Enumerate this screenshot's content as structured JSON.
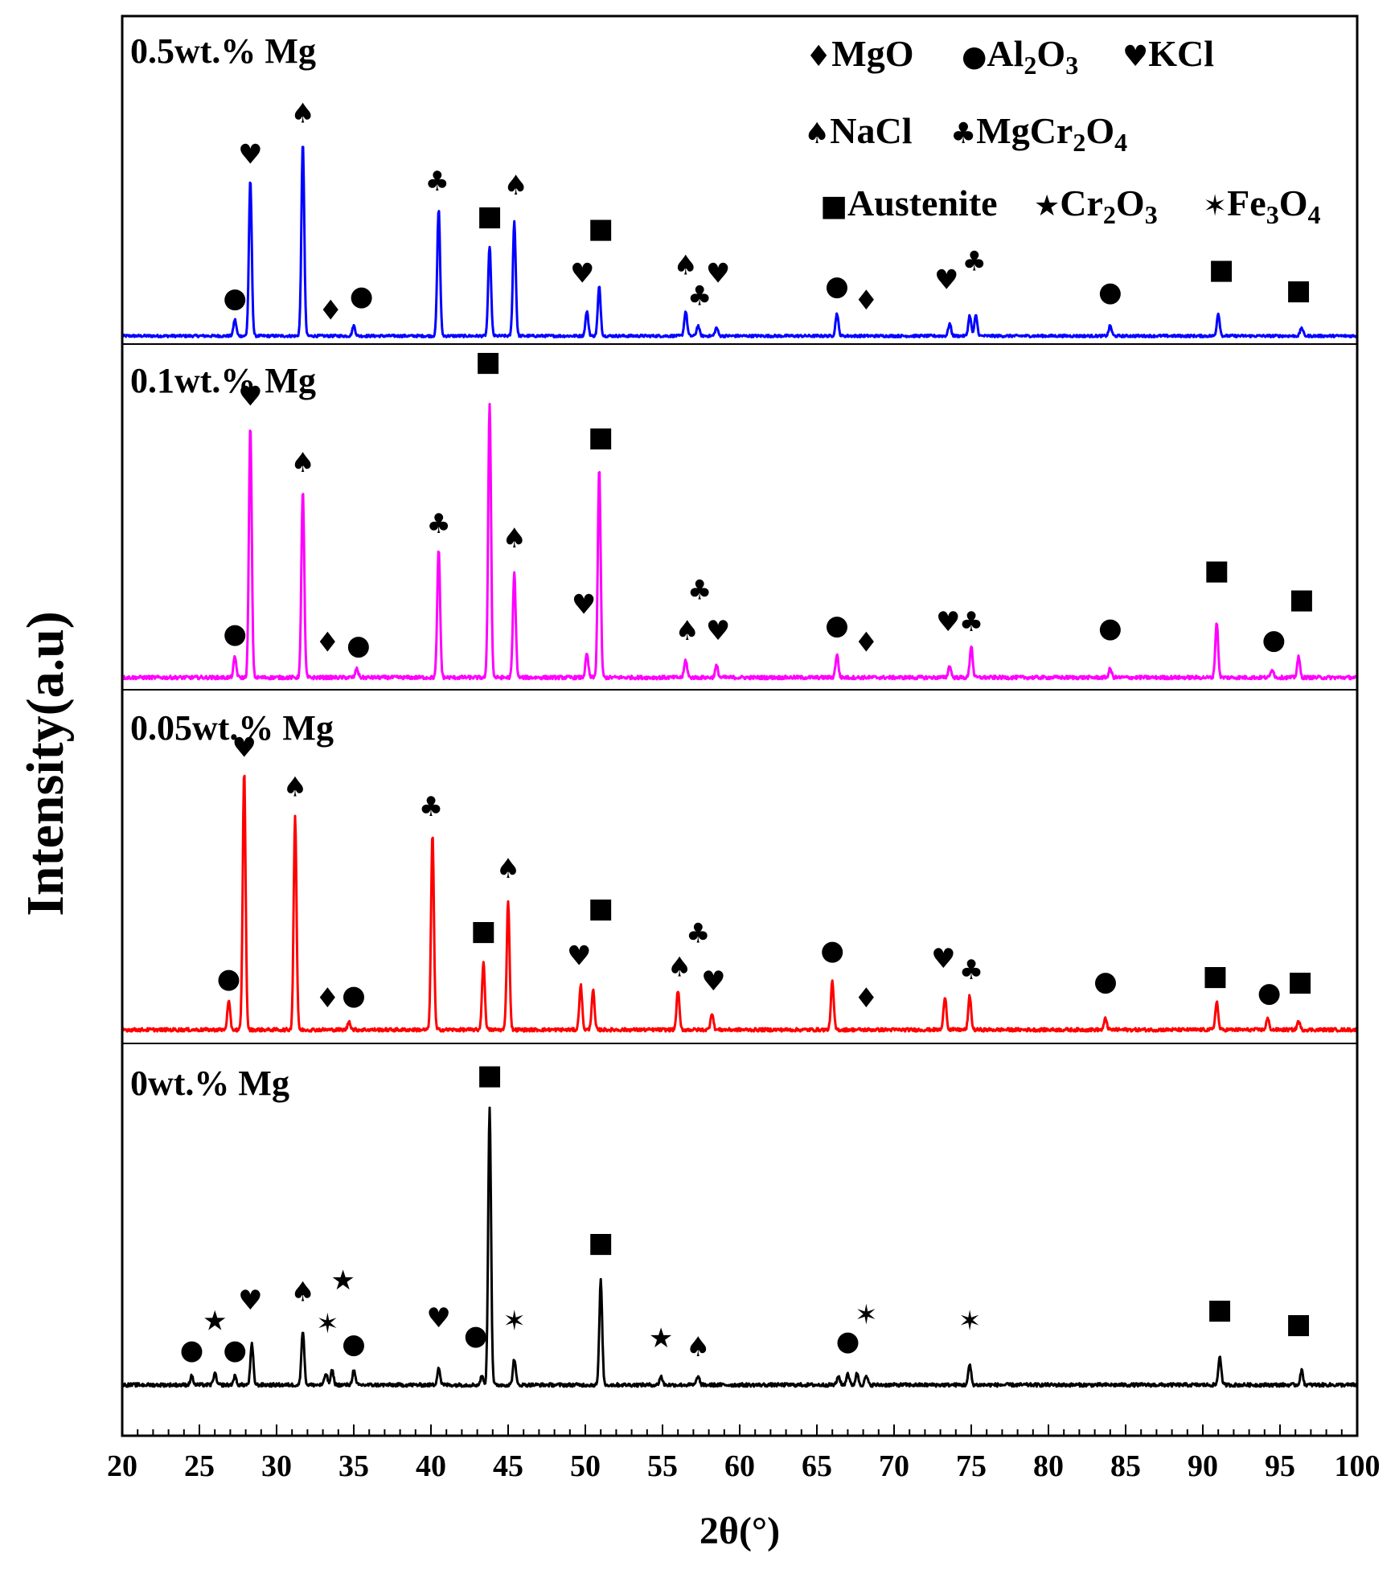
{
  "chart_data": {
    "type": "line",
    "title": "",
    "xlabel": "2θ(°)",
    "ylabel": "Intensity(a.u)",
    "xlim": [
      20,
      100
    ],
    "xticks": [
      20,
      25,
      30,
      35,
      40,
      45,
      50,
      55,
      60,
      65,
      70,
      75,
      80,
      85,
      90,
      95,
      100
    ],
    "xtick_labels": [
      "20",
      "25",
      "30",
      "35",
      "40",
      "45",
      "50",
      "55",
      "60",
      "65",
      "70",
      "75",
      "80",
      "85",
      "90",
      "95",
      "100"
    ],
    "legend": [
      {
        "symbol": "♦",
        "prefix": "MgO",
        "sub": "",
        "suffix": ""
      },
      {
        "symbol": "●",
        "prefix": "Al",
        "sub": "2",
        "mid": "O",
        "sub2": "3"
      },
      {
        "symbol": "♥",
        "prefix": "KCl",
        "sub": "",
        "suffix": ""
      },
      {
        "symbol": "♠",
        "prefix": "NaCl",
        "sub": "",
        "suffix": ""
      },
      {
        "symbol": "♣",
        "prefix": "MgCr",
        "sub": "2",
        "mid": "O",
        "sub2": "4"
      },
      {
        "symbol": "■",
        "prefix": "Austenite",
        "sub": "",
        "suffix": ""
      },
      {
        "symbol": "★",
        "prefix": "Cr",
        "sub": "2",
        "mid": "O",
        "sub2": "3"
      },
      {
        "symbol": "✶",
        "prefix": "Fe",
        "sub": "3",
        "mid": "O",
        "sub2": "4"
      }
    ],
    "series": [
      {
        "name": "0.5wt.% Mg",
        "color": "#0000ff",
        "baseline": 0.02,
        "peaks": [
          [
            27.3,
            0.08
          ],
          [
            28.3,
            0.76
          ],
          [
            31.7,
            0.94
          ],
          [
            35.0,
            0.05
          ],
          [
            40.5,
            0.62
          ],
          [
            43.8,
            0.44
          ],
          [
            45.4,
            0.56
          ],
          [
            50.1,
            0.12
          ],
          [
            50.9,
            0.24
          ],
          [
            56.5,
            0.12
          ],
          [
            57.3,
            0.05
          ],
          [
            58.5,
            0.04
          ],
          [
            66.3,
            0.11
          ],
          [
            73.6,
            0.06
          ],
          [
            74.9,
            0.1
          ],
          [
            75.3,
            0.1
          ],
          [
            84.0,
            0.05
          ],
          [
            91.0,
            0.11
          ],
          [
            96.4,
            0.04
          ]
        ],
        "markers": [
          {
            "symbol": "●",
            "x": 27.3,
            "y": 0.16
          },
          {
            "symbol": "♥",
            "x": 28.3,
            "y": 0.86
          },
          {
            "symbol": "♠",
            "x": 31.7,
            "y": 1.06
          },
          {
            "symbol": "♦",
            "x": 33.5,
            "y": 0.1
          },
          {
            "symbol": "●",
            "x": 35.5,
            "y": 0.17
          },
          {
            "symbol": "♣",
            "x": 40.4,
            "y": 0.73
          },
          {
            "symbol": "■",
            "x": 43.8,
            "y": 0.56
          },
          {
            "symbol": "♠",
            "x": 45.5,
            "y": 0.71
          },
          {
            "symbol": "♥",
            "x": 49.8,
            "y": 0.28
          },
          {
            "symbol": "■",
            "x": 51.0,
            "y": 0.5
          },
          {
            "symbol": "♠",
            "x": 56.5,
            "y": 0.32
          },
          {
            "symbol": "♣",
            "x": 57.4,
            "y": 0.17
          },
          {
            "symbol": "♥",
            "x": 58.6,
            "y": 0.28
          },
          {
            "symbol": "●",
            "x": 66.3,
            "y": 0.22
          },
          {
            "symbol": "♦",
            "x": 68.2,
            "y": 0.15
          },
          {
            "symbol": "♥",
            "x": 73.4,
            "y": 0.25
          },
          {
            "symbol": "♣",
            "x": 75.2,
            "y": 0.34
          },
          {
            "symbol": "●",
            "x": 84.0,
            "y": 0.19
          },
          {
            "symbol": "■",
            "x": 91.2,
            "y": 0.3
          },
          {
            "symbol": "■",
            "x": 96.2,
            "y": 0.2
          }
        ],
        "label": "0.5wt.% Mg"
      },
      {
        "name": "0.1wt.% Mg",
        "color": "#ff00ff",
        "baseline": 0.02,
        "peaks": [
          [
            27.3,
            0.07
          ],
          [
            28.3,
            0.87
          ],
          [
            31.7,
            0.65
          ],
          [
            35.2,
            0.03
          ],
          [
            40.5,
            0.44
          ],
          [
            43.8,
            0.95
          ],
          [
            45.4,
            0.36
          ],
          [
            50.1,
            0.08
          ],
          [
            50.9,
            0.72
          ],
          [
            56.5,
            0.06
          ],
          [
            58.5,
            0.04
          ],
          [
            66.3,
            0.08
          ],
          [
            73.6,
            0.04
          ],
          [
            75.0,
            0.11
          ],
          [
            84.0,
            0.03
          ],
          [
            90.9,
            0.19
          ],
          [
            94.5,
            0.03
          ],
          [
            96.2,
            0.07
          ]
        ],
        "markers": [
          {
            "symbol": "●",
            "x": 27.3,
            "y": 0.14
          },
          {
            "symbol": "♥",
            "x": 28.3,
            "y": 0.96
          },
          {
            "symbol": "♠",
            "x": 31.7,
            "y": 0.73
          },
          {
            "symbol": "♦",
            "x": 33.3,
            "y": 0.11
          },
          {
            "symbol": "●",
            "x": 35.3,
            "y": 0.1
          },
          {
            "symbol": "♣",
            "x": 40.5,
            "y": 0.52
          },
          {
            "symbol": "■",
            "x": 43.7,
            "y": 1.08
          },
          {
            "symbol": "♠",
            "x": 45.4,
            "y": 0.47
          },
          {
            "symbol": "♥",
            "x": 49.9,
            "y": 0.24
          },
          {
            "symbol": "■",
            "x": 51.0,
            "y": 0.82
          },
          {
            "symbol": "♠",
            "x": 56.6,
            "y": 0.15
          },
          {
            "symbol": "♣",
            "x": 57.4,
            "y": 0.29
          },
          {
            "symbol": "♥",
            "x": 58.6,
            "y": 0.15
          },
          {
            "symbol": "●",
            "x": 66.3,
            "y": 0.17
          },
          {
            "symbol": "♦",
            "x": 68.2,
            "y": 0.11
          },
          {
            "symbol": "♥",
            "x": 73.5,
            "y": 0.18
          },
          {
            "symbol": "♣",
            "x": 75.0,
            "y": 0.18
          },
          {
            "symbol": "●",
            "x": 84.0,
            "y": 0.16
          },
          {
            "symbol": "■",
            "x": 90.9,
            "y": 0.36
          },
          {
            "symbol": "●",
            "x": 94.6,
            "y": 0.12
          },
          {
            "symbol": "■",
            "x": 96.4,
            "y": 0.26
          }
        ],
        "label": "0.1wt.% Mg"
      },
      {
        "name": "0.05wt.% Mg",
        "color": "#ff0000",
        "baseline": 0.02,
        "peaks": [
          [
            26.9,
            0.1
          ],
          [
            27.9,
            0.92
          ],
          [
            31.2,
            0.76
          ],
          [
            34.7,
            0.03
          ],
          [
            40.1,
            0.7
          ],
          [
            43.4,
            0.24
          ],
          [
            45.0,
            0.46
          ],
          [
            49.7,
            0.16
          ],
          [
            50.5,
            0.14
          ],
          [
            56.0,
            0.14
          ],
          [
            58.2,
            0.06
          ],
          [
            66.0,
            0.17
          ],
          [
            73.3,
            0.12
          ],
          [
            74.9,
            0.12
          ],
          [
            83.7,
            0.04
          ],
          [
            90.9,
            0.1
          ],
          [
            94.2,
            0.04
          ],
          [
            96.2,
            0.03
          ]
        ],
        "markers": [
          {
            "symbol": "●",
            "x": 26.9,
            "y": 0.17
          },
          {
            "symbol": "♥",
            "x": 27.9,
            "y": 0.99
          },
          {
            "symbol": "♠",
            "x": 31.2,
            "y": 0.85
          },
          {
            "symbol": "♦",
            "x": 33.3,
            "y": 0.1
          },
          {
            "symbol": "●",
            "x": 35.0,
            "y": 0.11
          },
          {
            "symbol": "♣",
            "x": 40.0,
            "y": 0.78
          },
          {
            "symbol": "■",
            "x": 43.4,
            "y": 0.34
          },
          {
            "symbol": "♠",
            "x": 45.0,
            "y": 0.56
          },
          {
            "symbol": "♥",
            "x": 49.6,
            "y": 0.25
          },
          {
            "symbol": "■",
            "x": 51.0,
            "y": 0.42
          },
          {
            "symbol": "♠",
            "x": 56.1,
            "y": 0.21
          },
          {
            "symbol": "♣",
            "x": 57.3,
            "y": 0.33
          },
          {
            "symbol": "♥",
            "x": 58.3,
            "y": 0.16
          },
          {
            "symbol": "●",
            "x": 66.0,
            "y": 0.27
          },
          {
            "symbol": "♦",
            "x": 68.2,
            "y": 0.1
          },
          {
            "symbol": "♥",
            "x": 73.2,
            "y": 0.24
          },
          {
            "symbol": "♣",
            "x": 75.0,
            "y": 0.2
          },
          {
            "symbol": "●",
            "x": 83.7,
            "y": 0.16
          },
          {
            "symbol": "■",
            "x": 90.8,
            "y": 0.18
          },
          {
            "symbol": "●",
            "x": 94.3,
            "y": 0.12
          },
          {
            "symbol": "■",
            "x": 96.3,
            "y": 0.16
          }
        ],
        "label": "0.05wt.% Mg"
      },
      {
        "name": "0wt.% Mg",
        "color": "#000000",
        "baseline": 0.02,
        "peaks": [
          [
            24.5,
            0.03
          ],
          [
            26.0,
            0.04
          ],
          [
            27.3,
            0.03
          ],
          [
            28.4,
            0.14
          ],
          [
            31.7,
            0.19
          ],
          [
            33.2,
            0.04
          ],
          [
            33.6,
            0.05
          ],
          [
            35.0,
            0.05
          ],
          [
            40.5,
            0.06
          ],
          [
            43.3,
            0.03
          ],
          [
            43.8,
            0.96
          ],
          [
            45.4,
            0.09
          ],
          [
            51.0,
            0.36
          ],
          [
            54.9,
            0.03
          ],
          [
            57.3,
            0.03
          ],
          [
            66.4,
            0.03
          ],
          [
            67.0,
            0.04
          ],
          [
            67.6,
            0.04
          ],
          [
            68.2,
            0.03
          ],
          [
            74.9,
            0.07
          ],
          [
            91.1,
            0.1
          ],
          [
            96.4,
            0.05
          ]
        ],
        "markers": [
          {
            "symbol": "●",
            "x": 24.5,
            "y": 0.11
          },
          {
            "symbol": "★",
            "x": 26.0,
            "y": 0.21
          },
          {
            "symbol": "●",
            "x": 27.3,
            "y": 0.11
          },
          {
            "symbol": "♥",
            "x": 28.3,
            "y": 0.28
          },
          {
            "symbol": "♠",
            "x": 31.7,
            "y": 0.31
          },
          {
            "symbol": "✶",
            "x": 33.3,
            "y": 0.2
          },
          {
            "symbol": "★",
            "x": 34.3,
            "y": 0.35
          },
          {
            "symbol": "●",
            "x": 35.0,
            "y": 0.13
          },
          {
            "symbol": "♥",
            "x": 40.5,
            "y": 0.22
          },
          {
            "symbol": "●",
            "x": 42.9,
            "y": 0.16
          },
          {
            "symbol": "■",
            "x": 43.8,
            "y": 1.06
          },
          {
            "symbol": "✶",
            "x": 45.4,
            "y": 0.21
          },
          {
            "symbol": "■",
            "x": 51.0,
            "y": 0.48
          },
          {
            "symbol": "★",
            "x": 54.9,
            "y": 0.15
          },
          {
            "symbol": "♠",
            "x": 57.3,
            "y": 0.12
          },
          {
            "symbol": "●",
            "x": 67.0,
            "y": 0.14
          },
          {
            "symbol": "✶",
            "x": 68.2,
            "y": 0.23
          },
          {
            "symbol": "✶",
            "x": 74.9,
            "y": 0.21
          },
          {
            "symbol": "■",
            "x": 91.1,
            "y": 0.25
          },
          {
            "symbol": "■",
            "x": 96.2,
            "y": 0.2
          }
        ],
        "label": "0wt.% Mg"
      }
    ]
  }
}
